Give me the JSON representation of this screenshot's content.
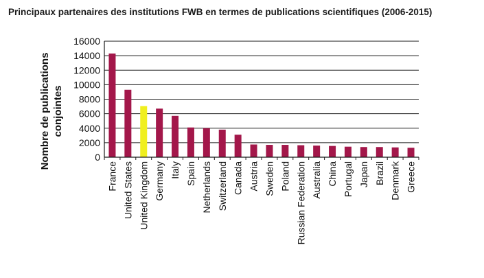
{
  "chart_data": {
    "type": "bar",
    "title": "Principaux partenaires des institutions FWB en termes de publications scientifiques (2006-2015)",
    "ylabel_line1": "Nombre de publications",
    "ylabel_line2": "conjointes",
    "xlabel": "",
    "ylim": [
      0,
      16000
    ],
    "yticks": [
      "0",
      "2000",
      "4000",
      "6000",
      "8000",
      "10000",
      "12000",
      "14000",
      "16000"
    ],
    "grid": true,
    "legend": "none",
    "categories": [
      "France",
      "United States",
      "United Kingdom",
      "Germany",
      "Italy",
      "Spain",
      "Netherlands",
      "Switzerland",
      "Canada",
      "Austria",
      "Sweden",
      "Poland",
      "Russian Federation",
      "Australia",
      "China",
      "Portugal",
      "Japan",
      "Brazil",
      "Denmark",
      "Greece"
    ],
    "values": [
      14300,
      9300,
      7050,
      6700,
      5700,
      4100,
      4000,
      3800,
      3100,
      1750,
      1700,
      1700,
      1650,
      1600,
      1550,
      1450,
      1400,
      1400,
      1350,
      1300
    ],
    "colors": {
      "default": "#a3174a",
      "highlight": "#f0ef1f",
      "highlight_category": "United Kingdom",
      "axis": "#1a1a1a",
      "grid": "#1a1a1a"
    }
  }
}
